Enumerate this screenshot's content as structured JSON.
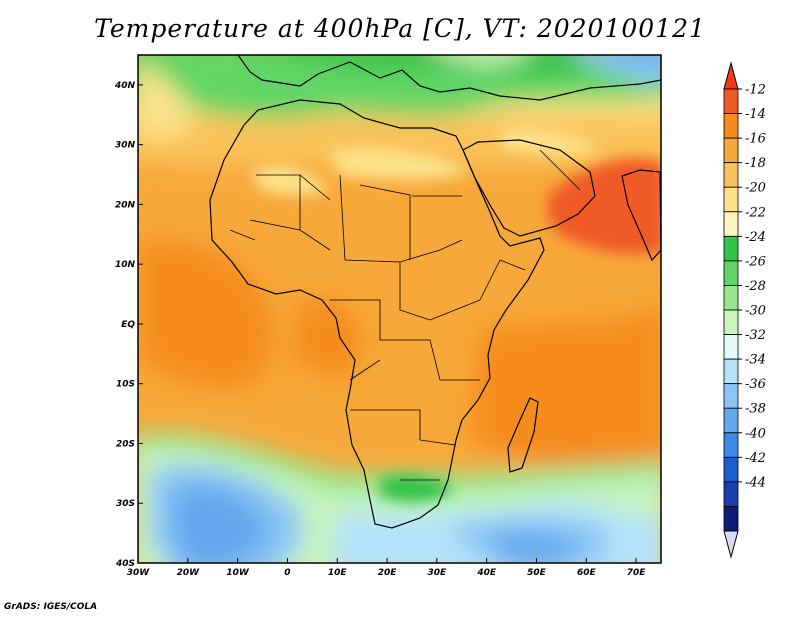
{
  "title": "Temperature at 400hPa [C], VT: 2020100121",
  "credit": "GrADS: IGES/COLA",
  "map": {
    "lon_range": [
      -30,
      75
    ],
    "lat_range": [
      -40,
      45
    ],
    "lon_ticks": [
      {
        "value": -30,
        "label": "30W"
      },
      {
        "value": -20,
        "label": "20W"
      },
      {
        "value": -10,
        "label": "10W"
      },
      {
        "value": 0,
        "label": "0"
      },
      {
        "value": 10,
        "label": "10E"
      },
      {
        "value": 20,
        "label": "20E"
      },
      {
        "value": 30,
        "label": "30E"
      },
      {
        "value": 40,
        "label": "40E"
      },
      {
        "value": 50,
        "label": "50E"
      },
      {
        "value": 60,
        "label": "60E"
      },
      {
        "value": 70,
        "label": "70E"
      }
    ],
    "lat_ticks": [
      {
        "value": 40,
        "label": "40N"
      },
      {
        "value": 30,
        "label": "30N"
      },
      {
        "value": 20,
        "label": "20N"
      },
      {
        "value": 10,
        "label": "10N"
      },
      {
        "value": 0,
        "label": "EQ"
      },
      {
        "value": -10,
        "label": "10S"
      },
      {
        "value": -20,
        "label": "20S"
      },
      {
        "value": -30,
        "label": "30S"
      },
      {
        "value": -40,
        "label": "40S"
      }
    ]
  },
  "colorbar": {
    "labels": [
      "-12",
      "-14",
      "-16",
      "-18",
      "-20",
      "-22",
      "-24",
      "-26",
      "-28",
      "-30",
      "-32",
      "-34",
      "-36",
      "-38",
      "-40",
      "-42",
      "-44"
    ],
    "colors_top_to_bottom": [
      "#f05a28",
      "#f58c1e",
      "#f7a83a",
      "#fac35a",
      "#fde28a",
      "#fff3c0",
      "#34c24a",
      "#62d566",
      "#96e68e",
      "#c8f5c0",
      "#e4fbfc",
      "#b4e2fa",
      "#8ac5f5",
      "#64a8ee",
      "#3c8ae4",
      "#1a5fd0",
      "#1a3fae",
      "#0c1a78"
    ],
    "over_color": "#f03c14",
    "under_color": "#dcdcfa"
  }
}
